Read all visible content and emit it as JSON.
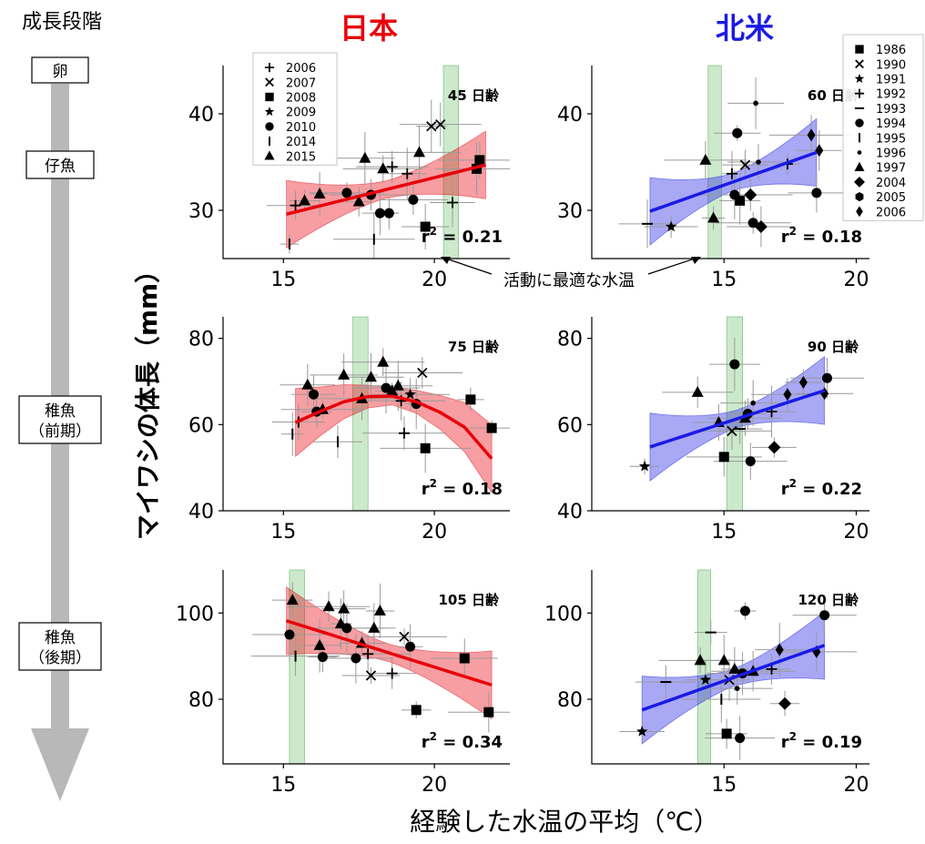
{
  "stage_title": "成長段階",
  "stages": [
    "卵",
    "仔魚",
    "稚魚\n（前期）",
    "稚魚\n（後期）"
  ],
  "column_titles": {
    "japan": "日本",
    "na": "北米"
  },
  "column_colors": {
    "japan": "#e8000b",
    "na": "#1a1ae6"
  },
  "ylabel": "マイワシの体長（mm）",
  "xlabel": "経験した水温の平均（℃）",
  "annotation": "活動に最適な水温",
  "legend_japan": [
    {
      "year": "2006",
      "marker": "plus"
    },
    {
      "year": "2007",
      "marker": "x"
    },
    {
      "year": "2008",
      "marker": "square"
    },
    {
      "year": "2009",
      "marker": "star"
    },
    {
      "year": "2010",
      "marker": "circle"
    },
    {
      "year": "2014",
      "marker": "vline"
    },
    {
      "year": "2015",
      "marker": "triangle"
    }
  ],
  "legend_na": [
    {
      "year": "1986",
      "marker": "square"
    },
    {
      "year": "1990",
      "marker": "x"
    },
    {
      "year": "1991",
      "marker": "star"
    },
    {
      "year": "1992",
      "marker": "plus"
    },
    {
      "year": "1993",
      "marker": "hline"
    },
    {
      "year": "1994",
      "marker": "circle"
    },
    {
      "year": "1995",
      "marker": "vline"
    },
    {
      "year": "1996",
      "marker": "point"
    },
    {
      "year": "1997",
      "marker": "triangle"
    },
    {
      "year": "2004",
      "marker": "diamond"
    },
    {
      "year": "2005",
      "marker": "hexagon"
    },
    {
      "year": "2006",
      "marker": "thin-diamond"
    }
  ],
  "chart_data": [
    {
      "type": "scatter",
      "region": "japan",
      "age_label": "45 日齢",
      "r2": "0.21",
      "xlim": [
        13,
        22.5
      ],
      "ylim": [
        25,
        45
      ],
      "xticks": [
        15,
        20
      ],
      "yticks": [
        30,
        40
      ],
      "optimal_band": [
        20.3,
        20.8
      ],
      "fit": "linear",
      "fit_line": [
        [
          15.1,
          29.6
        ],
        [
          21.7,
          34.7
        ]
      ],
      "points": [
        [
          15.2,
          26.5,
          "vline"
        ],
        [
          15.4,
          30.5,
          "plus"
        ],
        [
          15.7,
          31.0,
          "triangle"
        ],
        [
          16.2,
          31.7,
          "triangle"
        ],
        [
          17.1,
          31.8,
          "circle"
        ],
        [
          17.5,
          30.9,
          "triangle"
        ],
        [
          17.7,
          35.4,
          "triangle"
        ],
        [
          17.9,
          31.6,
          "circle"
        ],
        [
          18.0,
          27.0,
          "vline"
        ],
        [
          18.2,
          29.7,
          "circle"
        ],
        [
          18.3,
          34.3,
          "triangle"
        ],
        [
          18.5,
          29.7,
          "circle"
        ],
        [
          18.6,
          34.5,
          "plus"
        ],
        [
          19.1,
          33.8,
          "plus"
        ],
        [
          19.3,
          31.1,
          "circle"
        ],
        [
          19.5,
          36.0,
          "triangle"
        ],
        [
          19.7,
          28.3,
          "square"
        ],
        [
          19.9,
          38.7,
          "x"
        ],
        [
          20.2,
          38.9,
          "x"
        ],
        [
          20.6,
          30.8,
          "plus"
        ],
        [
          21.4,
          34.3,
          "square"
        ],
        [
          21.5,
          35.2,
          "square"
        ]
      ]
    },
    {
      "type": "scatter",
      "region": "na",
      "age_label": "60 日齢",
      "r2": "0.18",
      "xlim": [
        10,
        20.5
      ],
      "ylim": [
        25,
        45
      ],
      "xticks": [
        15,
        20
      ],
      "yticks": [
        30,
        40
      ],
      "optimal_band": [
        14.4,
        14.9
      ],
      "fit": "linear",
      "fit_line": [
        [
          12.2,
          29.9
        ],
        [
          18.5,
          36.0
        ]
      ],
      "points": [
        [
          12.1,
          28.6,
          "hline"
        ],
        [
          13.0,
          28.3,
          "star"
        ],
        [
          14.3,
          35.2,
          "triangle"
        ],
        [
          14.6,
          29.2,
          "triangle"
        ],
        [
          15.3,
          33.8,
          "plus"
        ],
        [
          15.4,
          31.6,
          "circle"
        ],
        [
          15.5,
          38.0,
          "circle"
        ],
        [
          15.6,
          31.0,
          "square"
        ],
        [
          15.8,
          34.7,
          "x"
        ],
        [
          16.0,
          31.6,
          "diamond"
        ],
        [
          16.1,
          28.7,
          "circle"
        ],
        [
          16.2,
          41.1,
          "point"
        ],
        [
          16.3,
          35.0,
          "point"
        ],
        [
          16.4,
          28.3,
          "diamond"
        ],
        [
          17.4,
          34.8,
          "plus"
        ],
        [
          18.3,
          37.8,
          "thin-diamond"
        ],
        [
          18.5,
          31.8,
          "circle"
        ],
        [
          18.6,
          36.2,
          "thin-diamond"
        ]
      ]
    },
    {
      "type": "scatter",
      "region": "japan",
      "age_label": "75 日齢",
      "r2": "0.18",
      "xlim": [
        13,
        22.5
      ],
      "ylim": [
        40,
        85
      ],
      "xticks": [
        15,
        20
      ],
      "yticks": [
        40,
        60,
        80
      ],
      "optimal_band": [
        17.3,
        17.8
      ],
      "fit": "quadratic",
      "fit_line": [
        [
          15.4,
          60.5
        ],
        [
          16.2,
          63.0
        ],
        [
          17.0,
          65.3
        ],
        [
          17.8,
          66.5
        ],
        [
          18.6,
          66.6
        ],
        [
          19.4,
          65.3
        ],
        [
          20.2,
          62.8
        ],
        [
          21.0,
          59.4
        ],
        [
          21.9,
          52.1
        ]
      ],
      "points": [
        [
          15.3,
          57.8,
          "vline"
        ],
        [
          15.5,
          60.6,
          "vline"
        ],
        [
          15.8,
          69.2,
          "triangle"
        ],
        [
          16.0,
          67.0,
          "circle"
        ],
        [
          16.1,
          63.0,
          "circle"
        ],
        [
          16.3,
          63.5,
          "triangle"
        ],
        [
          16.8,
          56.0,
          "vline"
        ],
        [
          17.0,
          71.5,
          "triangle"
        ],
        [
          17.6,
          66.0,
          "triangle"
        ],
        [
          17.9,
          71.0,
          "triangle"
        ],
        [
          18.3,
          74.5,
          "triangle"
        ],
        [
          18.4,
          68.5,
          "circle"
        ],
        [
          18.6,
          67.8,
          "triangle"
        ],
        [
          18.8,
          69.0,
          "triangle"
        ],
        [
          18.9,
          65.5,
          "plus"
        ],
        [
          19.0,
          58.0,
          "plus"
        ],
        [
          19.2,
          67.0,
          "star"
        ],
        [
          19.4,
          64.8,
          "circle"
        ],
        [
          19.6,
          72.0,
          "x"
        ],
        [
          19.7,
          54.5,
          "square"
        ],
        [
          21.2,
          65.8,
          "square"
        ],
        [
          21.9,
          59.2,
          "square"
        ]
      ]
    },
    {
      "type": "scatter",
      "region": "na",
      "age_label": "90 日齢",
      "r2": "0.22",
      "xlim": [
        10,
        20.5
      ],
      "ylim": [
        40,
        85
      ],
      "xticks": [
        15,
        20
      ],
      "yticks": [
        40,
        60,
        80
      ],
      "optimal_band": [
        15.1,
        15.7
      ],
      "fit": "linear",
      "fit_line": [
        [
          12.2,
          54.8
        ],
        [
          18.8,
          67.9
        ]
      ],
      "points": [
        [
          12.0,
          50.3,
          "star"
        ],
        [
          14.0,
          67.5,
          "triangle"
        ],
        [
          14.8,
          60.5,
          "triangle"
        ],
        [
          15.0,
          52.5,
          "square"
        ],
        [
          15.3,
          58.5,
          "x"
        ],
        [
          15.4,
          74.0,
          "circle"
        ],
        [
          15.6,
          59.0,
          "hline"
        ],
        [
          15.8,
          61.5,
          "triangle"
        ],
        [
          15.9,
          62.5,
          "circle"
        ],
        [
          16.0,
          51.5,
          "circle"
        ],
        [
          16.1,
          65.0,
          "point"
        ],
        [
          16.8,
          63.0,
          "plus"
        ],
        [
          16.9,
          54.7,
          "diamond"
        ],
        [
          17.4,
          67.0,
          "thin-diamond"
        ],
        [
          18.0,
          69.8,
          "thin-diamond"
        ],
        [
          18.8,
          67.2,
          "thin-diamond"
        ],
        [
          18.9,
          70.8,
          "circle"
        ]
      ]
    },
    {
      "type": "scatter",
      "region": "japan",
      "age_label": "105 日齢",
      "r2": "0.34",
      "xlim": [
        13,
        22.5
      ],
      "ylim": [
        65,
        110
      ],
      "xticks": [
        15,
        20
      ],
      "yticks": [
        80,
        100
      ],
      "optimal_band": [
        15.2,
        15.7
      ],
      "fit": "linear",
      "fit_line": [
        [
          15.1,
          98.2
        ],
        [
          21.9,
          83.3
        ]
      ],
      "points": [
        [
          15.2,
          95.0,
          "circle"
        ],
        [
          15.3,
          103.0,
          "triangle"
        ],
        [
          15.4,
          90.0,
          "vline"
        ],
        [
          16.2,
          92.5,
          "triangle"
        ],
        [
          16.3,
          89.8,
          "circle"
        ],
        [
          16.5,
          101.5,
          "triangle"
        ],
        [
          16.9,
          97.5,
          "triangle"
        ],
        [
          17.0,
          101.0,
          "triangle"
        ],
        [
          17.1,
          96.5,
          "circle"
        ],
        [
          17.4,
          89.5,
          "circle"
        ],
        [
          17.6,
          93.0,
          "triangle"
        ],
        [
          17.8,
          90.5,
          "plus"
        ],
        [
          17.9,
          85.5,
          "x"
        ],
        [
          18.0,
          96.5,
          "triangle"
        ],
        [
          18.2,
          100.5,
          "triangle"
        ],
        [
          18.6,
          86.0,
          "plus"
        ],
        [
          19.0,
          94.5,
          "x"
        ],
        [
          19.2,
          92.2,
          "circle"
        ],
        [
          19.4,
          77.5,
          "square"
        ],
        [
          21.0,
          89.5,
          "square"
        ],
        [
          21.8,
          77.0,
          "square"
        ]
      ]
    },
    {
      "type": "scatter",
      "region": "na",
      "age_label": "120 日齢",
      "r2": "0.19",
      "xlim": [
        10,
        20.5
      ],
      "ylim": [
        65,
        110
      ],
      "xticks": [
        15,
        20
      ],
      "yticks": [
        80,
        100
      ],
      "optimal_band": [
        14.0,
        14.5
      ],
      "fit": "linear",
      "fit_line": [
        [
          11.9,
          77.5
        ],
        [
          18.8,
          92.5
        ]
      ],
      "points": [
        [
          11.9,
          72.5,
          "star"
        ],
        [
          12.8,
          84.0,
          "hline"
        ],
        [
          14.1,
          89.0,
          "triangle"
        ],
        [
          14.3,
          84.5,
          "star"
        ],
        [
          14.5,
          95.5,
          "hline"
        ],
        [
          14.9,
          80.0,
          "vline"
        ],
        [
          15.0,
          89.0,
          "triangle"
        ],
        [
          15.1,
          72.0,
          "square"
        ],
        [
          15.2,
          84.5,
          "x"
        ],
        [
          15.4,
          87.0,
          "triangle"
        ],
        [
          15.5,
          82.5,
          "point"
        ],
        [
          15.6,
          71.0,
          "circle"
        ],
        [
          15.7,
          86.0,
          "circle"
        ],
        [
          15.8,
          100.5,
          "circle"
        ],
        [
          16.1,
          86.5,
          "triangle"
        ],
        [
          16.8,
          87.0,
          "plus"
        ],
        [
          17.1,
          91.5,
          "thin-diamond"
        ],
        [
          17.3,
          79.0,
          "diamond"
        ],
        [
          18.5,
          91.0,
          "thin-diamond"
        ],
        [
          18.8,
          99.5,
          "circle"
        ]
      ]
    }
  ]
}
